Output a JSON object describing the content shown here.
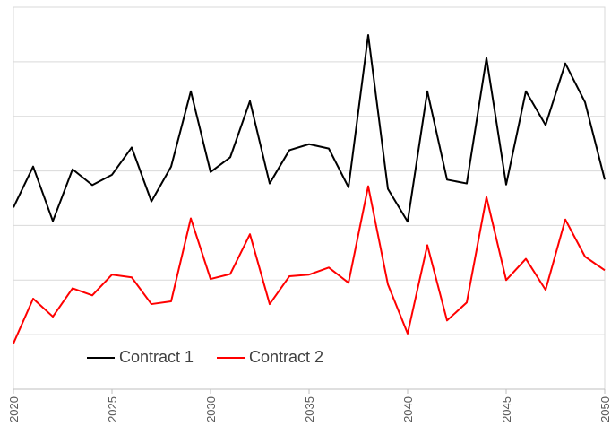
{
  "chart_data": {
    "type": "line",
    "x": [
      2020,
      2021,
      2022,
      2023,
      2024,
      2025,
      2026,
      2027,
      2028,
      2029,
      2030,
      2031,
      2032,
      2033,
      2034,
      2035,
      2036,
      2037,
      2038,
      2039,
      2040,
      2041,
      2042,
      2043,
      2044,
      2045,
      2046,
      2047,
      2048,
      2049,
      2050
    ],
    "series": [
      {
        "name": "Contract 1",
        "color": "#000000",
        "values": [
          3.33,
          4.08,
          3.08,
          4.03,
          3.74,
          3.93,
          4.43,
          3.44,
          4.08,
          5.46,
          3.98,
          4.25,
          5.28,
          3.77,
          4.38,
          4.49,
          4.41,
          3.7,
          6.49,
          3.67,
          3.07,
          5.46,
          3.84,
          3.77,
          6.07,
          3.75,
          5.46,
          4.84,
          5.97,
          5.26,
          3.84
        ]
      },
      {
        "name": "Contract 2",
        "color": "#ff0000",
        "values": [
          0.84,
          1.66,
          1.33,
          1.85,
          1.72,
          2.1,
          2.05,
          1.56,
          1.61,
          3.13,
          2.02,
          2.11,
          2.84,
          1.56,
          2.07,
          2.1,
          2.23,
          1.95,
          3.72,
          1.92,
          1.02,
          2.64,
          1.26,
          1.59,
          3.52,
          2.0,
          2.39,
          1.82,
          3.11,
          2.43,
          2.18
        ]
      }
    ],
    "xlim": [
      2020,
      2050
    ],
    "xticks": [
      2020,
      2025,
      2030,
      2035,
      2040,
      2045,
      2050
    ],
    "ylim": [
      0,
      7
    ],
    "yticks": [
      1,
      2,
      3,
      4,
      5,
      6
    ],
    "grid": true,
    "legend": "lower left"
  }
}
